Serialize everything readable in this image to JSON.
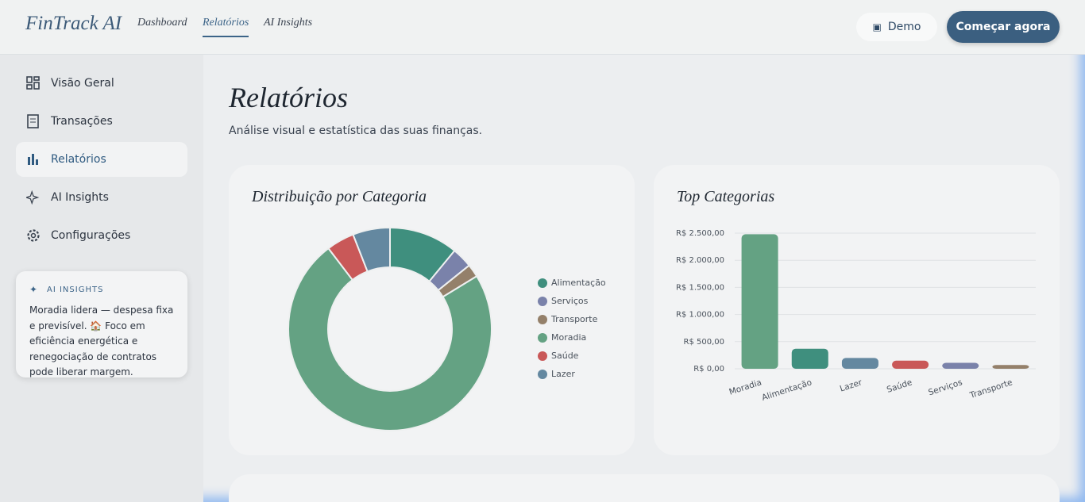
{
  "header": {
    "logo": "FinTrack AI",
    "nav": [
      "Dashboard",
      "Relatórios",
      "AI Insights"
    ],
    "demo": "Demo",
    "cta": "Começar agora"
  },
  "sidebar": {
    "items": [
      "Visão Geral",
      "Transações",
      "Relatórios",
      "AI Insights",
      "Configurações"
    ],
    "insight": {
      "title": "AI INSIGHTS",
      "text": "Moradia lidera — despesa fixa e previsível. 🏠 Foco em eficiência energética e renegociação de contratos pode liberar margem."
    }
  },
  "page": {
    "title": "Relatórios",
    "subtitle": "Análise visual e estatística das suas finanças."
  },
  "chart_data": [
    {
      "type": "pie",
      "title": "Distribuição por Categoria",
      "categories": [
        "Alimentação",
        "Serviços",
        "Transporte",
        "Moradia",
        "Saúde",
        "Lazer"
      ],
      "values": [
        370,
        110,
        70,
        2480,
        150,
        200
      ],
      "colors": [
        "#3f8f7e",
        "#7a82aa",
        "#94806a",
        "#64a283",
        "#c95858",
        "#6488a0"
      ],
      "legend": "right"
    },
    {
      "type": "bar",
      "title": "Top Categorias",
      "categories": [
        "Moradia",
        "Alimentação",
        "Lazer",
        "Saúde",
        "Serviços",
        "Transporte"
      ],
      "values": [
        2480,
        370,
        200,
        150,
        110,
        70
      ],
      "colors": [
        "#64a283",
        "#3f8f7e",
        "#6488a0",
        "#c95858",
        "#7a82aa",
        "#94806a"
      ],
      "ylim": [
        0,
        2500
      ],
      "yticks": [
        {
          "value": 0,
          "label": "R$ 0,00"
        },
        {
          "value": 500,
          "label": "R$ 500,00"
        },
        {
          "value": 1000,
          "label": "R$ 1.000,00"
        },
        {
          "value": 1500,
          "label": "R$ 1.500,00"
        },
        {
          "value": 2000,
          "label": "R$ 2.000,00"
        },
        {
          "value": 2500,
          "label": "R$ 2.500,00"
        }
      ],
      "grid": true
    }
  ]
}
